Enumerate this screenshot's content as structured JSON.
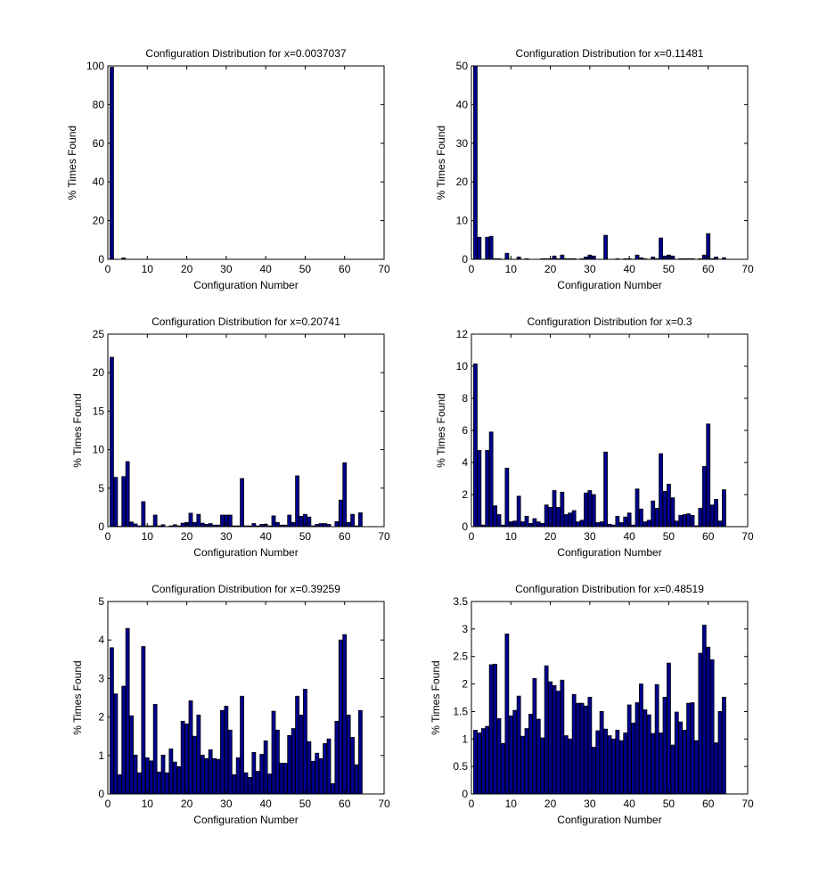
{
  "figure": {
    "background": "#ffffff"
  },
  "chart_data": [
    {
      "type": "bar",
      "title": "Configuration Distribution for x=0.0037037",
      "xlabel": "Configuration Number",
      "ylabel": "% Times Found",
      "xlim": [
        0,
        70
      ],
      "ylim": [
        0,
        100
      ],
      "xticks": [
        0,
        10,
        20,
        30,
        40,
        50,
        60,
        70
      ],
      "yticks": [
        0,
        20,
        40,
        60,
        80,
        100
      ],
      "bar_color": "#00008F",
      "x": "1..64",
      "values": [
        99.3,
        0,
        0,
        0.7,
        0,
        0,
        0,
        0,
        0,
        0,
        0,
        0,
        0,
        0,
        0,
        0,
        0,
        0,
        0,
        0,
        0,
        0,
        0,
        0,
        0,
        0,
        0,
        0,
        0,
        0,
        0,
        0,
        0,
        0,
        0,
        0,
        0,
        0,
        0,
        0,
        0,
        0,
        0,
        0,
        0,
        0,
        0,
        0,
        0,
        0,
        0,
        0,
        0,
        0,
        0,
        0,
        0,
        0,
        0,
        0,
        0,
        0,
        0,
        0
      ]
    },
    {
      "type": "bar",
      "title": "Configuration Distribution for x=0.11481",
      "xlabel": "Configuration Number",
      "ylabel": "% Times Found",
      "xlim": [
        0,
        70
      ],
      "ylim": [
        0,
        50
      ],
      "xticks": [
        0,
        10,
        20,
        30,
        40,
        50,
        60,
        70
      ],
      "yticks": [
        0,
        10,
        20,
        30,
        40,
        50
      ],
      "bar_color": "#00008F",
      "x": "1..64",
      "values": [
        50,
        5.7,
        0,
        5.7,
        5.95,
        0.15,
        0.15,
        0,
        1.55,
        0,
        0,
        0.6,
        0,
        0.15,
        0,
        0,
        0,
        0.15,
        0.15,
        0.15,
        0.85,
        0.15,
        1.1,
        0.15,
        0.15,
        0.15,
        0,
        0.15,
        0.6,
        1.1,
        0.85,
        0,
        0,
        6.2,
        0,
        0,
        0.15,
        0,
        0.15,
        0.15,
        0,
        1.1,
        0.4,
        0.15,
        0,
        0.6,
        0.15,
        5.5,
        0.85,
        1.1,
        0.85,
        0,
        0.15,
        0.15,
        0.15,
        0.15,
        0,
        0.15,
        1.1,
        6.65,
        0.15,
        0.6,
        0,
        0.4
      ]
    },
    {
      "type": "bar",
      "title": "Configuration Distribution for x=0.20741",
      "xlabel": "Configuration Number",
      "ylabel": "% Times Found",
      "xlim": [
        0,
        70
      ],
      "ylim": [
        0,
        25
      ],
      "xticks": [
        0,
        10,
        20,
        30,
        40,
        50,
        60,
        70
      ],
      "yticks": [
        0,
        5,
        10,
        15,
        20,
        25
      ],
      "bar_color": "#00008F",
      "x": "1..64",
      "values": [
        22.0,
        6.4,
        0.05,
        6.5,
        8.45,
        0.6,
        0.35,
        0.1,
        3.25,
        0.1,
        0.1,
        1.5,
        0.1,
        0.25,
        0,
        0.1,
        0.25,
        0.1,
        0.45,
        0.55,
        1.75,
        0.55,
        1.6,
        0.45,
        0.3,
        0.4,
        0.2,
        0.2,
        1.5,
        1.5,
        1.5,
        0.1,
        0.1,
        6.25,
        0.1,
        0.1,
        0.4,
        0.1,
        0.3,
        0.3,
        0.1,
        1.4,
        0.55,
        0.2,
        0.2,
        1.5,
        0.55,
        6.6,
        1.35,
        1.6,
        1.25,
        0.1,
        0.3,
        0.4,
        0.4,
        0.3,
        0,
        0.65,
        3.45,
        8.3,
        0.55,
        1.6,
        0.1,
        1.8
      ]
    },
    {
      "type": "bar",
      "title": "Configuration Distribution for x=0.3",
      "xlabel": "Configuration Number",
      "ylabel": "% Times Found",
      "xlim": [
        0,
        70
      ],
      "ylim": [
        0,
        12
      ],
      "xticks": [
        0,
        10,
        20,
        30,
        40,
        50,
        60,
        70
      ],
      "yticks": [
        0,
        2,
        4,
        6,
        8,
        10,
        12
      ],
      "bar_color": "#00008F",
      "x": "1..64",
      "values": [
        10.15,
        4.75,
        0.1,
        4.75,
        5.9,
        1.3,
        0.75,
        0.1,
        3.65,
        0.3,
        0.35,
        1.9,
        0.3,
        0.65,
        0.2,
        0.5,
        0.3,
        0.2,
        1.35,
        1.2,
        2.25,
        1.2,
        2.15,
        0.75,
        0.85,
        1.0,
        0.3,
        0.4,
        2.1,
        2.25,
        2.0,
        0.25,
        0.3,
        4.65,
        0.15,
        0.1,
        0.65,
        0.25,
        0.6,
        0.85,
        0.1,
        2.35,
        1.1,
        0.3,
        0.4,
        1.6,
        1.15,
        4.55,
        2.2,
        2.65,
        1.8,
        0.35,
        0.7,
        0.75,
        0.8,
        0.7,
        0.05,
        1.15,
        3.75,
        6.4,
        1.35,
        1.7,
        0.35,
        2.3
      ]
    },
    {
      "type": "bar",
      "title": "Configuration Distribution for x=0.39259",
      "xlabel": "Configuration Number",
      "ylabel": "% Times Found",
      "xlim": [
        0,
        70
      ],
      "ylim": [
        0,
        5
      ],
      "xticks": [
        0,
        10,
        20,
        30,
        40,
        50,
        60,
        70
      ],
      "yticks": [
        0,
        1,
        2,
        3,
        4,
        5
      ],
      "bar_color": "#00008F",
      "x": "1..64",
      "values": [
        3.8,
        2.6,
        0.5,
        2.8,
        4.3,
        2.03,
        1.01,
        0.55,
        3.83,
        0.94,
        0.86,
        2.33,
        0.57,
        1.01,
        0.55,
        1.17,
        0.83,
        0.71,
        1.89,
        1.82,
        2.42,
        1.5,
        2.05,
        1.01,
        0.92,
        1.15,
        0.92,
        0.9,
        2.17,
        2.28,
        1.66,
        0.5,
        0.94,
        2.54,
        0.55,
        0.43,
        1.08,
        0.59,
        1.03,
        1.38,
        0.52,
        2.15,
        1.66,
        0.8,
        0.8,
        1.52,
        1.7,
        2.54,
        2.05,
        2.72,
        1.36,
        0.85,
        1.06,
        0.92,
        1.31,
        1.43,
        0.27,
        1.89,
        4.0,
        4.14,
        2.05,
        1.47,
        0.76,
        2.17
      ]
    },
    {
      "type": "bar",
      "title": "Configuration Distribution for x=0.48519",
      "xlabel": "Configuration Number",
      "ylabel": "% Times Found",
      "xlim": [
        0,
        70
      ],
      "ylim": [
        0,
        3.5
      ],
      "xticks": [
        0,
        10,
        20,
        30,
        40,
        50,
        60,
        70
      ],
      "yticks": [
        0,
        0.5,
        1,
        1.5,
        2,
        2.5,
        3,
        3.5
      ],
      "bar_color": "#00008F",
      "x": "1..64",
      "values": [
        1.16,
        1.11,
        1.19,
        1.23,
        2.35,
        2.36,
        1.37,
        0.92,
        2.91,
        1.42,
        1.52,
        1.78,
        1.05,
        1.19,
        1.45,
        2.1,
        1.36,
        1.02,
        2.33,
        2.04,
        1.97,
        1.87,
        2.07,
        1.06,
        1.0,
        1.81,
        1.65,
        1.65,
        1.6,
        1.76,
        0.85,
        1.15,
        1.5,
        1.18,
        1.06,
        1.0,
        1.16,
        0.97,
        1.11,
        1.62,
        1.29,
        1.66,
        2.0,
        1.53,
        1.44,
        1.1,
        1.99,
        1.11,
        1.76,
        2.38,
        0.89,
        1.49,
        1.31,
        1.16,
        1.65,
        1.66,
        0.97,
        2.56,
        3.07,
        2.67,
        2.44,
        0.93,
        1.5,
        1.76
      ]
    }
  ]
}
